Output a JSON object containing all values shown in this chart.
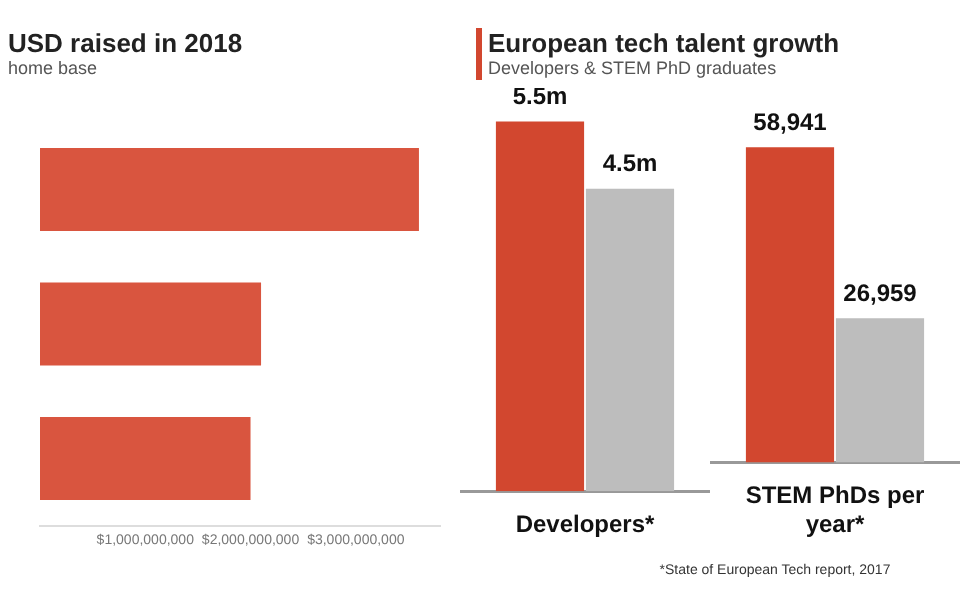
{
  "chart_data": [
    {
      "type": "bar",
      "orientation": "horizontal",
      "title": "USD raised in 2018",
      "subtitle": "home base",
      "categories": [
        null,
        null,
        null
      ],
      "series": [
        {
          "color": "#d9553f",
          "values": [
            3600000000.0,
            2100000000.0,
            2000000000.0
          ]
        }
      ],
      "xlim": [
        0,
        3800000000.0
      ],
      "xticks": [
        {
          "value": 1000000000.0,
          "label": "$1,000,000,000"
        },
        {
          "value": 2000000000.0,
          "label": "$2,000,000,000"
        },
        {
          "value": 3000000000.0,
          "label": "$3,000,000,000"
        }
      ],
      "grid": false,
      "legend": false
    },
    {
      "type": "bar",
      "title": "European tech talent growth",
      "subtitle": "Developers & STEM PhD graduates",
      "categories": [
        "Developers*"
      ],
      "series": [
        {
          "color": "#d2472f",
          "values": [
            5.5
          ],
          "value_labels": [
            "5.5m"
          ]
        },
        {
          "color": "#bdbdbd",
          "values": [
            4.5
          ],
          "value_labels": [
            "4.5m"
          ]
        }
      ],
      "grid": false,
      "legend": false
    },
    {
      "type": "bar",
      "categories": [
        "STEM PhDs per year*"
      ],
      "series": [
        {
          "color": "#d2472f",
          "values": [
            58941
          ],
          "value_labels": [
            "58,941"
          ]
        },
        {
          "color": "#bdbdbd",
          "values": [
            26959
          ],
          "value_labels": [
            "26,959"
          ]
        }
      ],
      "annotations": [
        "*State of European Tech report, 2017"
      ],
      "grid": false,
      "legend": false
    }
  ]
}
